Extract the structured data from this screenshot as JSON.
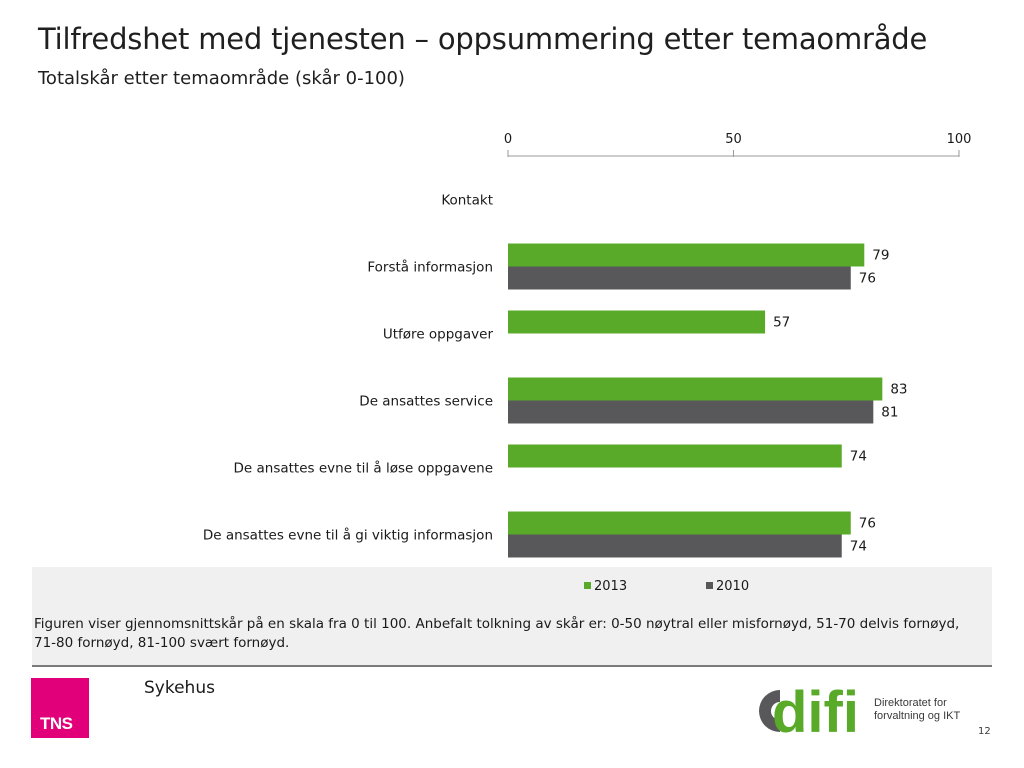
{
  "header": {
    "title": "Tilfredshet med tjenesten – oppsummering etter temaområde",
    "subtitle": "Totalskår etter temaområde (skår 0-100)"
  },
  "chart_data": {
    "type": "bar",
    "orientation": "horizontal",
    "title": "",
    "xlabel": "",
    "ylabel": "",
    "xlim": [
      0,
      100
    ],
    "ticks": [
      0,
      50,
      100
    ],
    "categories": [
      "Kontakt",
      "Forstå informasjon",
      "Utføre oppgaver",
      "De ansattes service",
      "De ansattes evne til å løse oppgavene",
      "De ansattes evne til å gi viktig informasjon"
    ],
    "series": [
      {
        "name": "2013",
        "color": "#5aaa2a",
        "values": [
          null,
          79,
          57,
          83,
          74,
          76
        ]
      },
      {
        "name": "2010",
        "color": "#58585a",
        "values": [
          null,
          76,
          null,
          81,
          null,
          74
        ]
      }
    ],
    "legend_position": "bottom",
    "grid": false
  },
  "note": "Figuren viser gjennomsnittskår på en skala fra 0 til 100. Anbefalt tolkning av skår er: 0-50 nøytral eller misfornøyd, 51-70 delvis fornøyd, 71-80 fornøyd, 81-100 svært fornøyd.",
  "footer": {
    "label": "Sykehus",
    "page_number": "12",
    "tns_logo_text": "TNS",
    "difi_logo_text": "difi",
    "difi_tagline_1": "Direktoratet for",
    "difi_tagline_2": "forvaltning og IKT"
  },
  "colors": {
    "accent_green": "#5aaa2a",
    "dark_gray": "#58585a",
    "tns_pink": "#e2007a"
  }
}
